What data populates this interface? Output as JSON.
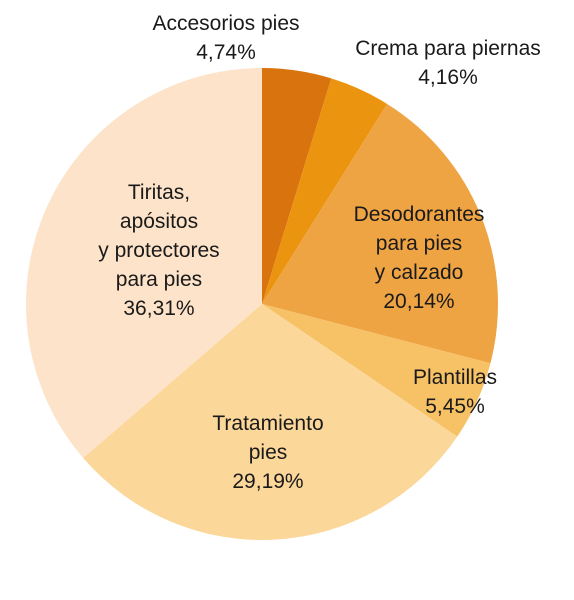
{
  "chart_data": {
    "type": "pie",
    "slices": [
      {
        "label": [
          "Accesorios pies"
        ],
        "value_text": "4,74%",
        "value": 4.74,
        "color": "#D9730D"
      },
      {
        "label": [
          "Crema para piernas"
        ],
        "value_text": "4,16%",
        "value": 4.16,
        "color": "#EB940F"
      },
      {
        "label": [
          "Desodorantes",
          "para pies",
          "y calzado"
        ],
        "value_text": "20,14%",
        "value": 20.14,
        "color": "#EFA444"
      },
      {
        "label": [
          "Plantillas"
        ],
        "value_text": "5,45%",
        "value": 5.45,
        "color": "#F7C165"
      },
      {
        "label": [
          "Tratamiento",
          "pies"
        ],
        "value_text": "29,19%",
        "value": 29.19,
        "color": "#FCD79A"
      },
      {
        "label": [
          "Tiritas,",
          "apósitos",
          "y protectores",
          "para pies"
        ],
        "value_text": "36,31%",
        "value": 36.31,
        "color": "#FDE3C9"
      }
    ]
  }
}
